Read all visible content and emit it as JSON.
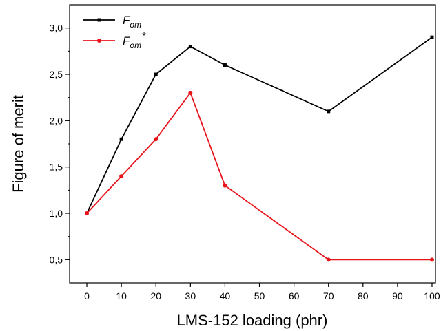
{
  "chart_data": {
    "type": "line",
    "xlabel": "LMS-152 loading (phr)",
    "ylabel": "Figure of merit",
    "xlim": [
      -5,
      101
    ],
    "ylim": [
      0.25,
      3.25
    ],
    "xticks": [
      0,
      10,
      20,
      30,
      40,
      50,
      60,
      70,
      80,
      90,
      100
    ],
    "yticks": [
      0.5,
      1.0,
      1.5,
      2.0,
      2.5,
      3.0
    ],
    "xtick_labels": [
      "0",
      "10",
      "20",
      "30",
      "40",
      "50",
      "60",
      "70",
      "80",
      "90",
      "100"
    ],
    "ytick_labels": [
      "0,5",
      "1,0",
      "1,5",
      "2,0",
      "2,5",
      "3,0"
    ],
    "legend_position": "top-left",
    "grid": false,
    "series": [
      {
        "name": "F",
        "subscript": "om",
        "suffix": "",
        "color": "#000000",
        "marker": "square",
        "x": [
          0,
          10,
          20,
          30,
          40,
          70,
          100
        ],
        "y": [
          1.0,
          1.8,
          2.5,
          2.8,
          2.6,
          2.1,
          2.9
        ]
      },
      {
        "name": "F",
        "subscript": "om",
        "suffix": "*",
        "color": "#e8141c",
        "marker": "circle",
        "x": [
          0,
          10,
          20,
          30,
          40,
          70,
          100
        ],
        "y": [
          1.0,
          1.4,
          1.8,
          2.3,
          1.3,
          0.5,
          0.5
        ]
      }
    ]
  }
}
